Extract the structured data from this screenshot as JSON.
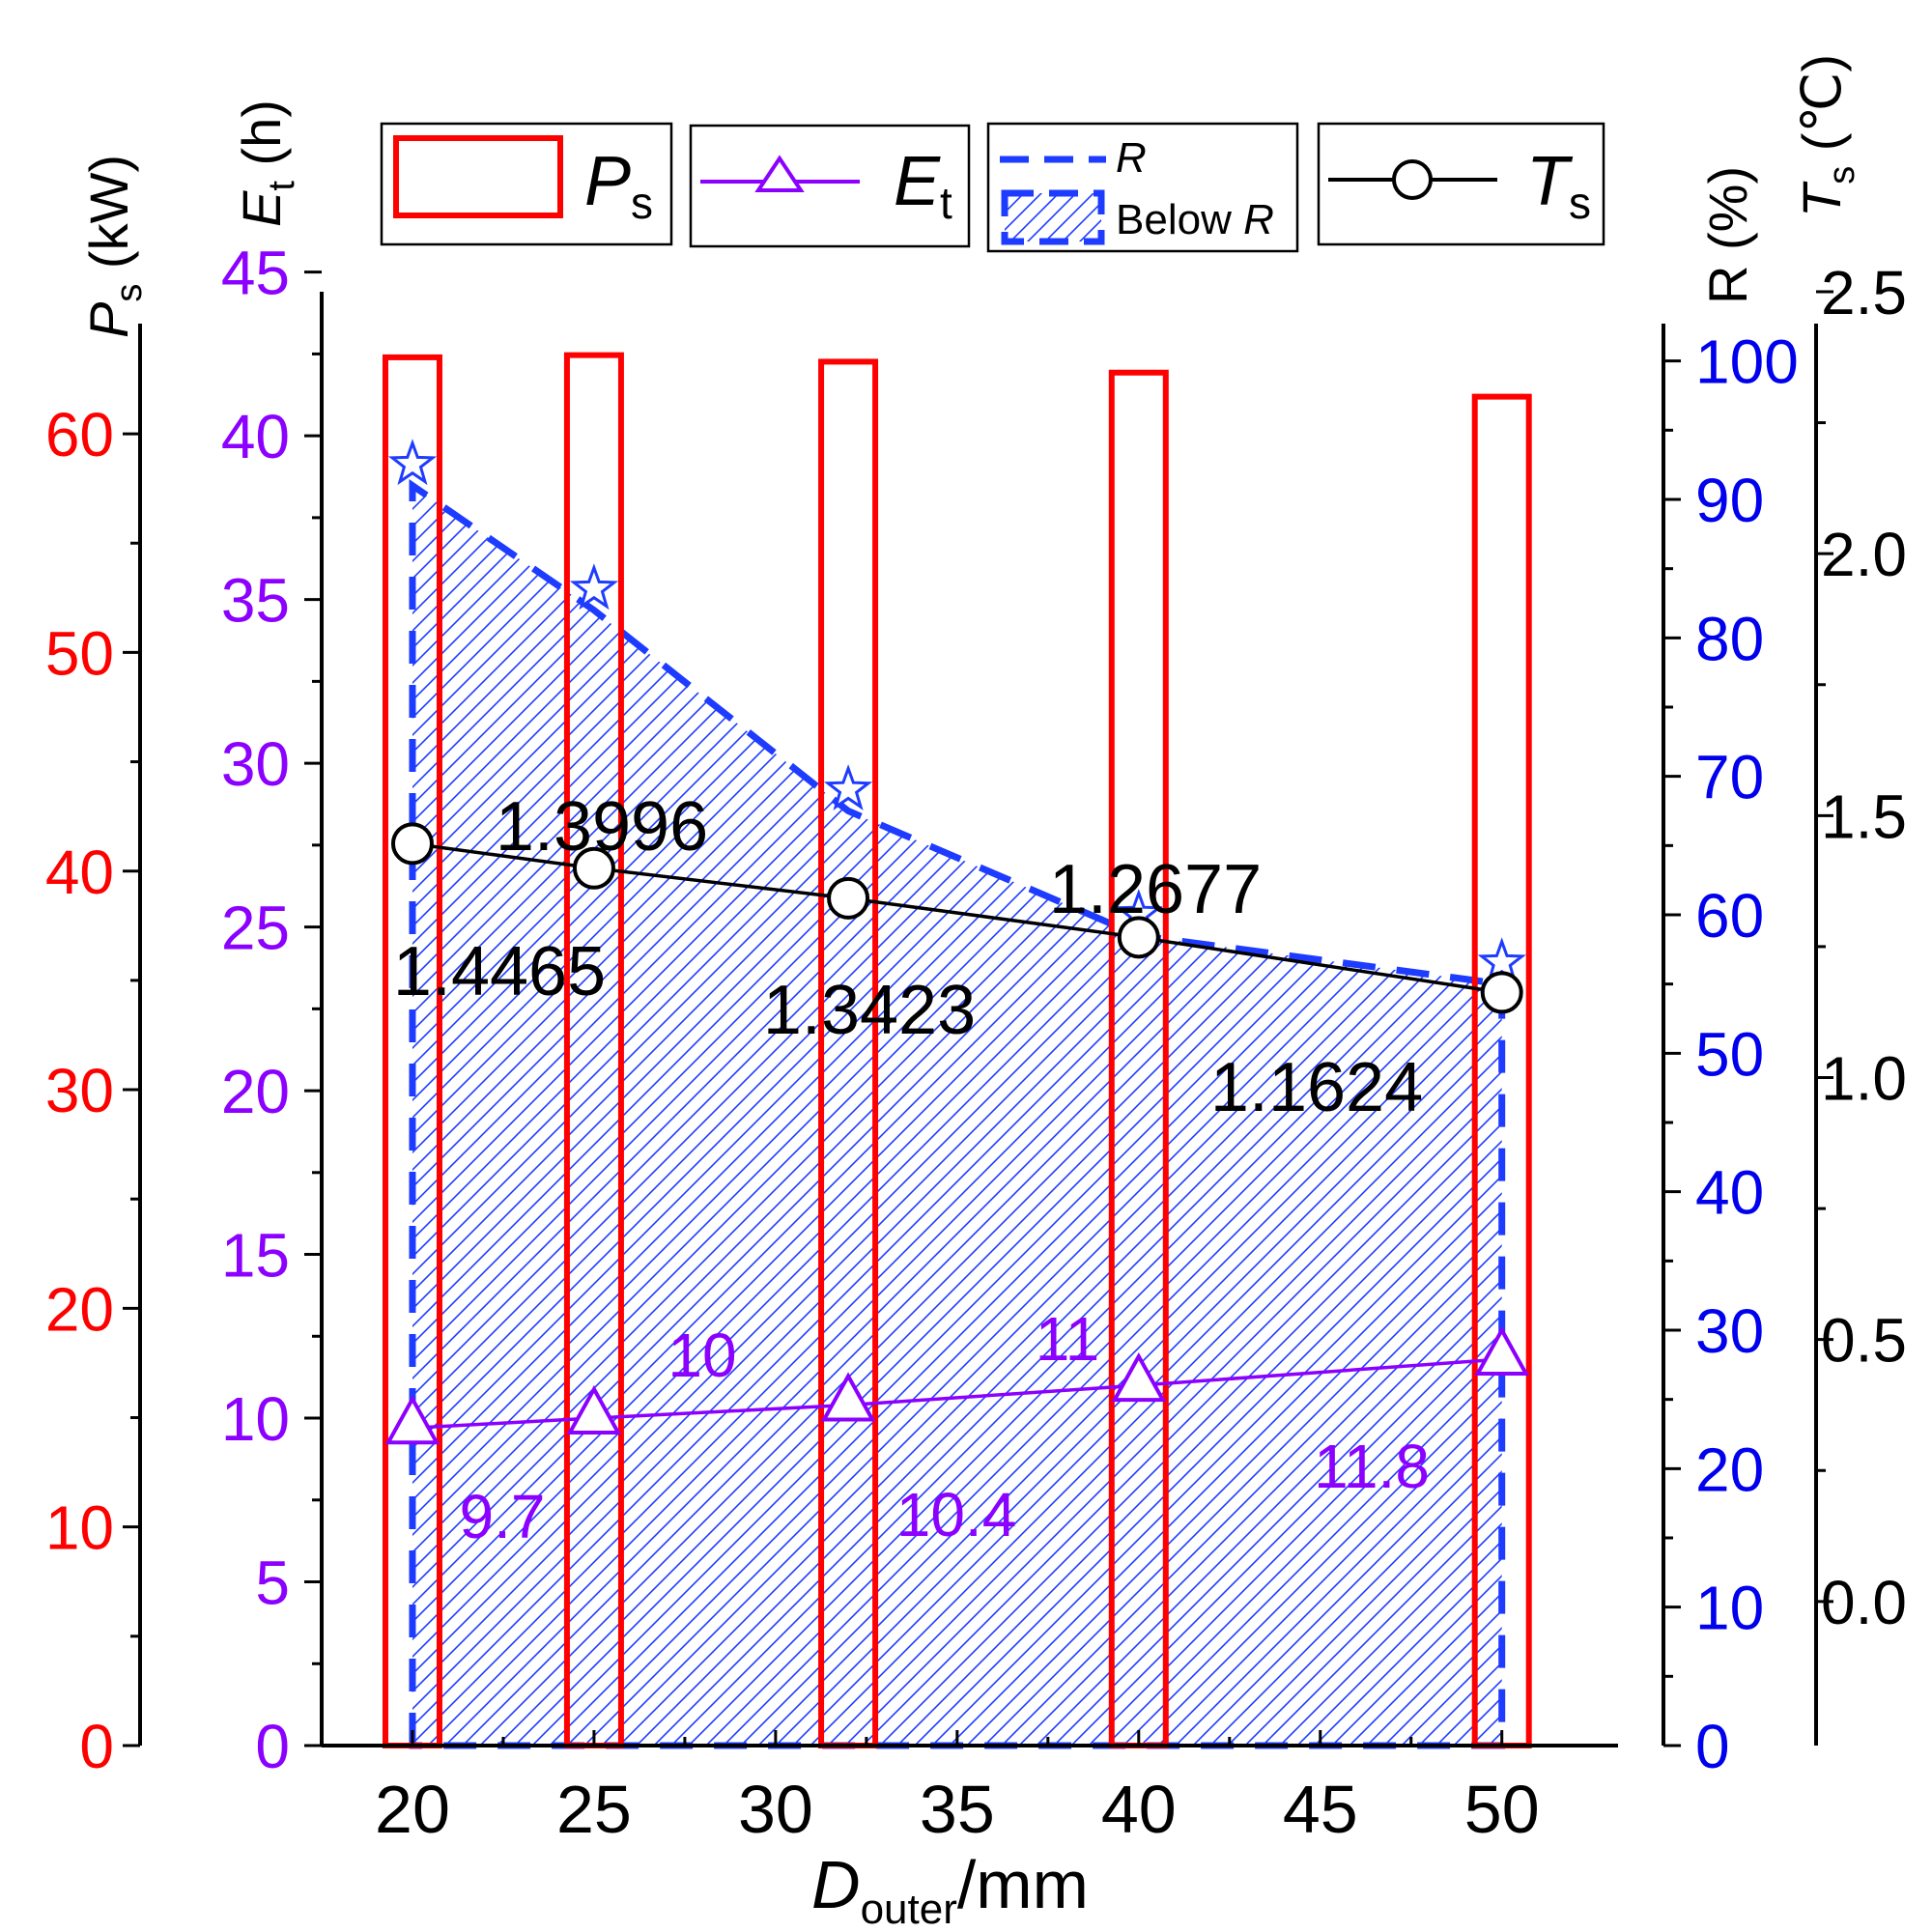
{
  "colors": {
    "ps": "#ff0000",
    "et": "#8b00ff",
    "r": "#1e3cff",
    "r_axis": "#0000ee",
    "ts": "#000000"
  },
  "axes": {
    "x_label_main": "D",
    "x_label_sub": "outer",
    "x_label_unit": "/mm",
    "ps_label_main": "P",
    "ps_label_sub": "s",
    "ps_label_unit": " (kW)",
    "et_label_main": "E",
    "et_label_sub": "t",
    "et_label_unit": " (h)",
    "r_label": "R (%)",
    "ts_label_main": "T",
    "ts_label_sub": "s",
    "ts_label_unit": " (℃)"
  },
  "legend": {
    "ps_main": "P",
    "ps_sub": "s",
    "et_main": "E",
    "et_sub": "t",
    "r_line": "R",
    "r_area_prefix": "Below ",
    "r_area_italic": "R",
    "ts_main": "T",
    "ts_sub": "s"
  },
  "chart_data": {
    "type": "bar",
    "x": [
      20,
      25,
      32,
      40,
      50
    ],
    "xlim": [
      17.5,
      53.2
    ],
    "x_ticks": [
      20,
      25,
      30,
      35,
      40,
      45,
      50
    ],
    "series": [
      {
        "key": "ps",
        "type": "bar",
        "values": [
          63.5,
          63.6,
          63.3,
          62.8,
          61.7
        ],
        "ylim": [
          0,
          66.5
        ],
        "ticks": [
          0,
          10,
          20,
          30,
          40,
          50,
          60
        ]
      },
      {
        "key": "et",
        "type": "line",
        "marker": "triangle",
        "values": [
          9.7,
          10,
          10.4,
          11,
          11.8
        ],
        "labels": [
          "9.7",
          "10",
          "10.4",
          "11",
          "11.8"
        ],
        "ylim": [
          0,
          44.4
        ],
        "ticks": [
          0,
          5,
          10,
          15,
          20,
          25,
          30,
          35,
          40,
          45
        ]
      },
      {
        "key": "r",
        "type": "area",
        "marker": "star",
        "values": [
          91,
          82,
          67.5,
          58.5,
          55
        ],
        "ylim": [
          0,
          105
        ],
        "ticks": [
          0,
          10,
          20,
          30,
          40,
          50,
          60,
          70,
          80,
          90,
          100
        ]
      },
      {
        "key": "ts",
        "type": "line",
        "marker": "circle",
        "values": [
          1.4465,
          1.3996,
          1.3423,
          1.2677,
          1.1624
        ],
        "labels": [
          "1.4465",
          "1.3996",
          "1.3423",
          "1.2677",
          "1.1624"
        ],
        "ylim": [
          -0.275,
          2.5
        ],
        "ticks": [
          0.0,
          0.5,
          1.0,
          1.5,
          2.0,
          2.5
        ],
        "tick_labels": [
          "0.0",
          "0.5",
          "1.0",
          "1.5",
          "2.0",
          "2.5"
        ]
      }
    ]
  }
}
